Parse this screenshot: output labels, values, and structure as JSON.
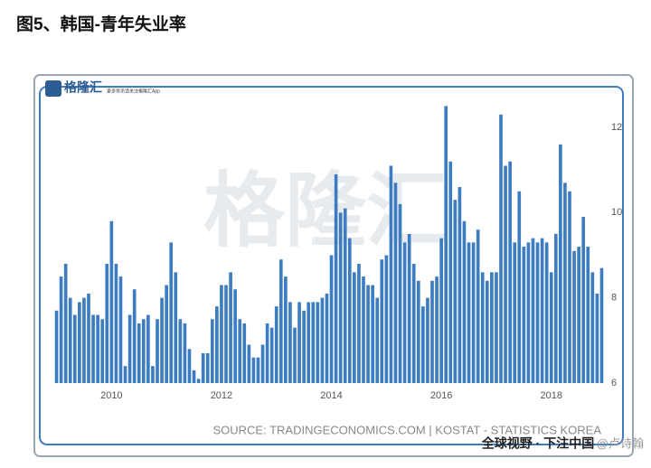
{
  "header": {
    "title": "图5、韩国-青年失业率"
  },
  "logo": {
    "name": "格隆汇",
    "subtitle": "更多资讯请关注格隆汇App"
  },
  "watermark": "格隆汇",
  "footer_watermark": "全球视野 · 下注中国",
  "author": "@卢诗翰",
  "chart_data": {
    "type": "bar",
    "source": "SOURCE: TRADINGECONOMICS.COM | KOSTAT - STATISTICS KOREA",
    "categories": [
      null,
      null,
      null,
      null,
      null,
      null,
      null,
      null,
      null,
      null,
      null,
      null,
      "2010",
      null,
      null,
      null,
      null,
      null,
      null,
      null,
      null,
      null,
      null,
      null,
      null,
      null,
      null,
      null,
      null,
      null,
      null,
      null,
      null,
      null,
      null,
      null,
      "2012",
      null,
      null,
      null,
      null,
      null,
      null,
      null,
      null,
      null,
      null,
      null,
      null,
      null,
      null,
      null,
      null,
      null,
      null,
      null,
      null,
      null,
      null,
      null,
      "2014",
      null,
      null,
      null,
      null,
      null,
      null,
      null,
      null,
      null,
      null,
      null,
      null,
      null,
      null,
      null,
      null,
      null,
      null,
      null,
      null,
      null,
      null,
      null,
      "2016",
      null,
      null,
      null,
      null,
      null,
      null,
      null,
      null,
      null,
      null,
      null,
      null,
      null,
      null,
      null,
      null,
      null,
      null,
      null,
      null,
      null,
      null,
      null,
      "2018",
      null,
      null,
      null,
      null,
      null,
      null,
      null,
      null,
      null,
      null,
      null
    ],
    "values": [
      7.7,
      8.5,
      8.8,
      8.0,
      7.6,
      7.9,
      8.0,
      8.1,
      7.6,
      7.6,
      7.5,
      8.8,
      9.8,
      8.8,
      8.5,
      6.4,
      7.6,
      8.2,
      7.4,
      7.5,
      7.6,
      6.4,
      7.5,
      8.0,
      8.3,
      9.3,
      8.6,
      7.5,
      7.4,
      6.8,
      6.3,
      6.1,
      6.7,
      6.7,
      7.5,
      7.8,
      8.3,
      8.3,
      8.6,
      8.2,
      7.5,
      7.4,
      6.9,
      6.6,
      6.6,
      6.9,
      7.4,
      7.3,
      7.8,
      8.9,
      8.5,
      7.9,
      7.3,
      7.9,
      7.7,
      7.9,
      7.9,
      7.9,
      8.0,
      8.1,
      9.0,
      10.9,
      10.0,
      10.1,
      9.4,
      8.6,
      8.8,
      8.5,
      8.3,
      8.3,
      8.0,
      8.9,
      9.0,
      11.1,
      10.7,
      10.2,
      9.3,
      9.5,
      8.8,
      8.4,
      7.8,
      8.0,
      8.4,
      8.5,
      9.4,
      12.5,
      11.2,
      10.3,
      10.6,
      9.8,
      9.3,
      9.3,
      9.6,
      8.6,
      8.4,
      8.6,
      8.6,
      12.3,
      11.1,
      11.2,
      9.3,
      10.5,
      9.2,
      9.3,
      9.4,
      9.3,
      9.4,
      9.3,
      8.6,
      9.5,
      11.6,
      10.7,
      10.5,
      9.1,
      9.2,
      9.9,
      9.2,
      8.6,
      8.1,
      8.7
    ],
    "color": "#3d7cc0",
    "ylim": [
      6,
      12.7
    ],
    "yticks": [
      6,
      8,
      10,
      12
    ],
    "grid": false
  }
}
